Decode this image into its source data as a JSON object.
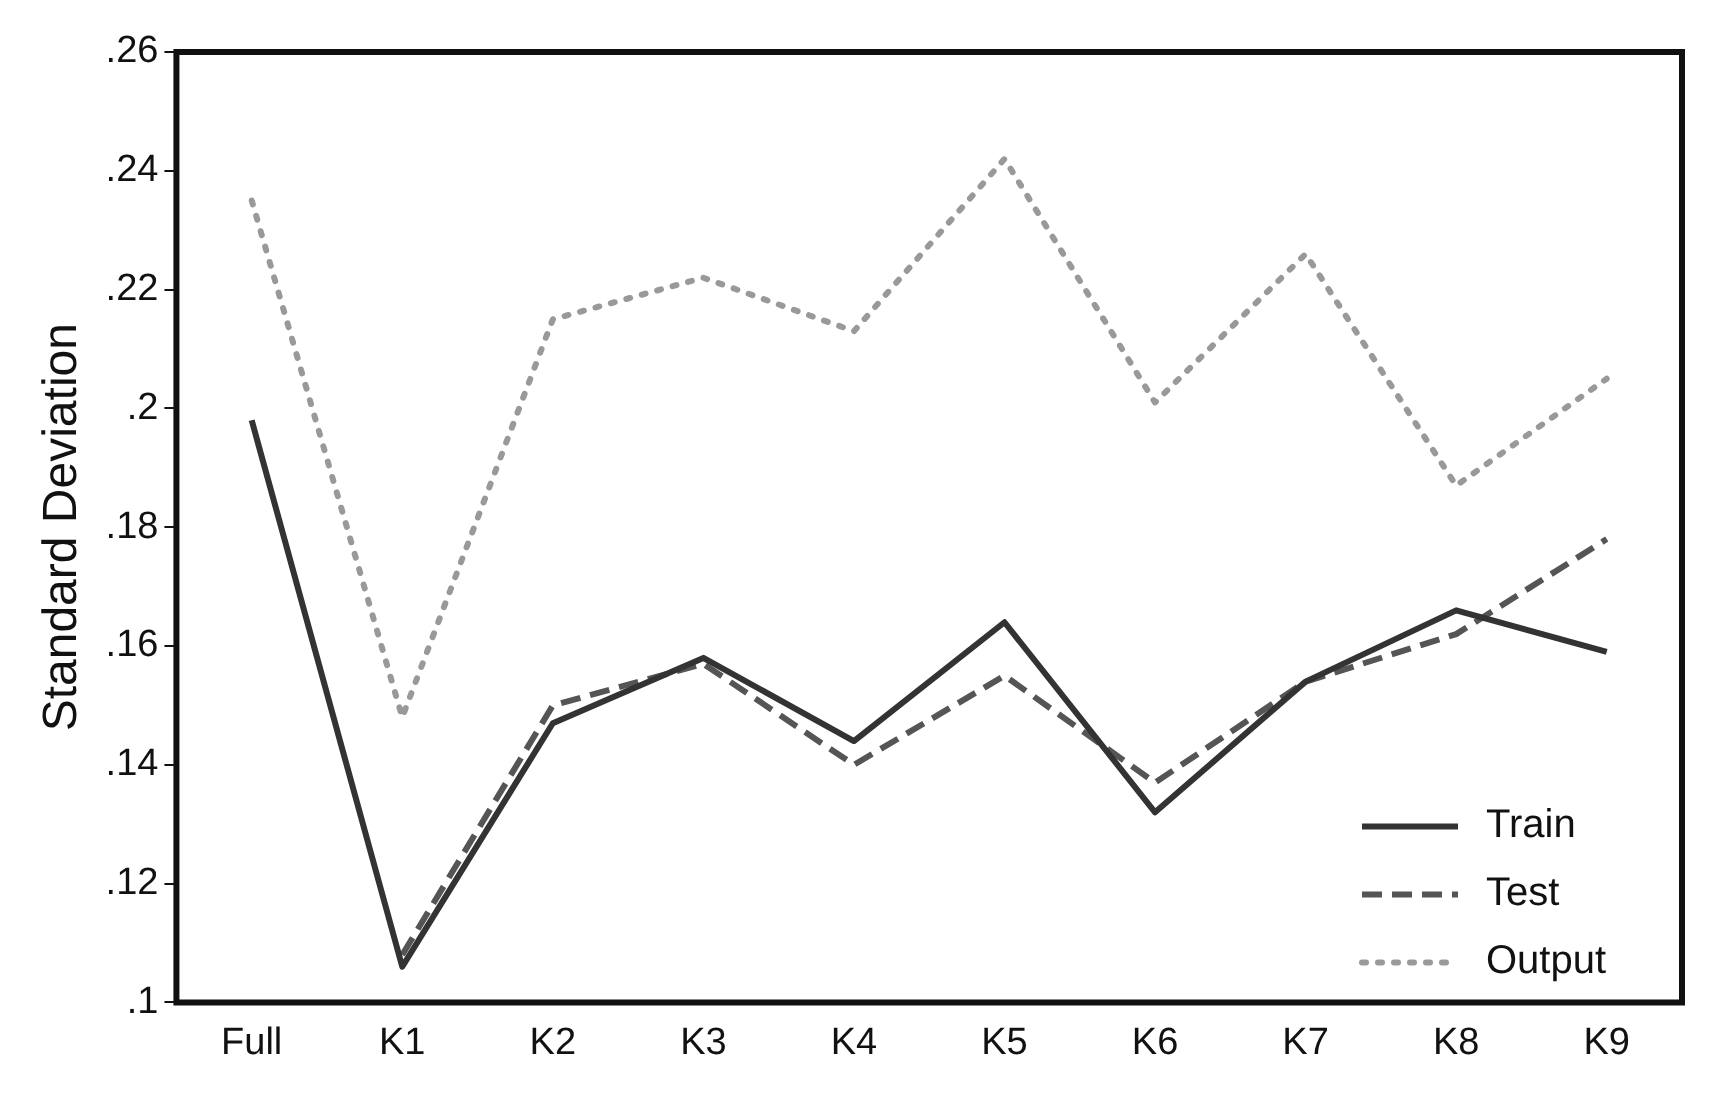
{
  "chart_data": {
    "type": "line",
    "ylabel": "Standard Deviation",
    "categories": [
      "Full",
      "K1",
      "K2",
      "K3",
      "K4",
      "K5",
      "K6",
      "K7",
      "K8",
      "K9"
    ],
    "series": [
      {
        "name": "Train",
        "color": "#333333",
        "values": [
          0.198,
          0.106,
          0.147,
          0.158,
          0.144,
          0.164,
          0.132,
          0.154,
          0.166,
          0.159
        ],
        "line_style": "solid"
      },
      {
        "name": "Test",
        "color": "#555555",
        "values": [
          null,
          0.108,
          0.15,
          0.157,
          0.14,
          0.155,
          0.137,
          0.154,
          0.162,
          0.178
        ],
        "line_style": "dashed"
      },
      {
        "name": "Output",
        "color": "#999999",
        "values": [
          0.235,
          0.148,
          0.215,
          0.222,
          0.213,
          0.242,
          0.201,
          0.226,
          0.187,
          0.205
        ],
        "line_style": "dotted"
      }
    ],
    "ylim": [
      0.1,
      0.26
    ],
    "yticks": [
      {
        "value": 0.1,
        "label": ".1"
      },
      {
        "value": 0.12,
        "label": ".12"
      },
      {
        "value": 0.14,
        "label": ".14"
      },
      {
        "value": 0.16,
        "label": ".16"
      },
      {
        "value": 0.18,
        "label": ".18"
      },
      {
        "value": 0.2,
        "label": ".2"
      },
      {
        "value": 0.22,
        "label": ".22"
      },
      {
        "value": 0.24,
        "label": ".24"
      },
      {
        "value": 0.26,
        "label": ".26"
      }
    ],
    "grid": false,
    "legend": "bottom right",
    "marker": "none"
  }
}
